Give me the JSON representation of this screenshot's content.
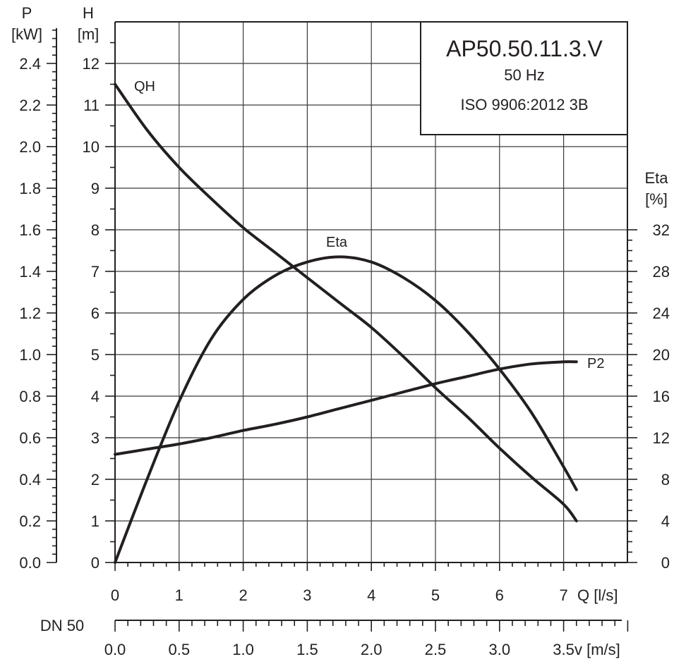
{
  "chart_data": {
    "type": "line",
    "title_box": {
      "model": "AP50.50.11.3.V",
      "frequency": "50 Hz",
      "standard": "ISO 9906:2012 3B"
    },
    "x_axis": {
      "label": "Q [l/s]",
      "range": [
        0,
        8
      ],
      "ticks": [
        "0",
        "1",
        "2",
        "3",
        "4",
        "5",
        "6",
        "7"
      ]
    },
    "velocity_axis": {
      "name": "DN 50",
      "label": "v [m/s]",
      "range": [
        0,
        4
      ],
      "ticks": [
        "0.0",
        "0.5",
        "1.0",
        "1.5",
        "2.0",
        "2.5",
        "3.0",
        "3.5"
      ]
    },
    "head_axis": {
      "letter": "H",
      "unit": "[m]",
      "range": [
        0,
        13
      ],
      "ticks": [
        "0",
        "1",
        "2",
        "3",
        "4",
        "5",
        "6",
        "7",
        "8",
        "9",
        "10",
        "11",
        "12"
      ]
    },
    "power_axis": {
      "letter": "P",
      "unit": "[kW]",
      "range": [
        0,
        2.6
      ],
      "ticks": [
        "0.0",
        "0.2",
        "0.4",
        "0.6",
        "0.8",
        "1.0",
        "1.2",
        "1.4",
        "1.6",
        "1.8",
        "2.0",
        "2.2",
        "2.4"
      ]
    },
    "eta_axis": {
      "letter": "Eta",
      "unit": "[%]",
      "range": [
        0,
        52
      ],
      "ticks": [
        "0",
        "4",
        "8",
        "12",
        "16",
        "20",
        "24",
        "28",
        "32"
      ]
    },
    "grid": true,
    "series": [
      {
        "name": "QH",
        "axis": "head",
        "points": [
          [
            0,
            11.5
          ],
          [
            0.5,
            10.4
          ],
          [
            1,
            9.5
          ],
          [
            1.5,
            8.75
          ],
          [
            2,
            8.05
          ],
          [
            2.5,
            7.45
          ],
          [
            3,
            6.85
          ],
          [
            3.5,
            6.25
          ],
          [
            4,
            5.65
          ],
          [
            4.5,
            4.95
          ],
          [
            5,
            4.2
          ],
          [
            5.5,
            3.5
          ],
          [
            6,
            2.75
          ],
          [
            6.5,
            2.05
          ],
          [
            7,
            1.4
          ],
          [
            7.2,
            1.0
          ]
        ]
      },
      {
        "name": "Eta",
        "axis": "eta",
        "points": [
          [
            0,
            0
          ],
          [
            0.5,
            8
          ],
          [
            1,
            15.5
          ],
          [
            1.5,
            21.5
          ],
          [
            2,
            25.3
          ],
          [
            2.5,
            27.6
          ],
          [
            3,
            28.9
          ],
          [
            3.5,
            29.4
          ],
          [
            4,
            28.9
          ],
          [
            4.5,
            27.4
          ],
          [
            5,
            25.2
          ],
          [
            5.5,
            22.2
          ],
          [
            6,
            18.6
          ],
          [
            6.5,
            14.4
          ],
          [
            7,
            9.2
          ],
          [
            7.2,
            7.0
          ]
        ]
      },
      {
        "name": "P2",
        "axis": "power",
        "points": [
          [
            0,
            0.52
          ],
          [
            0.5,
            0.545
          ],
          [
            1,
            0.57
          ],
          [
            1.5,
            0.6
          ],
          [
            2,
            0.635
          ],
          [
            2.5,
            0.665
          ],
          [
            3,
            0.7
          ],
          [
            3.5,
            0.74
          ],
          [
            4,
            0.78
          ],
          [
            4.5,
            0.82
          ],
          [
            5,
            0.86
          ],
          [
            5.5,
            0.895
          ],
          [
            6,
            0.93
          ],
          [
            6.5,
            0.955
          ],
          [
            7,
            0.965
          ],
          [
            7.2,
            0.965
          ]
        ]
      }
    ]
  }
}
